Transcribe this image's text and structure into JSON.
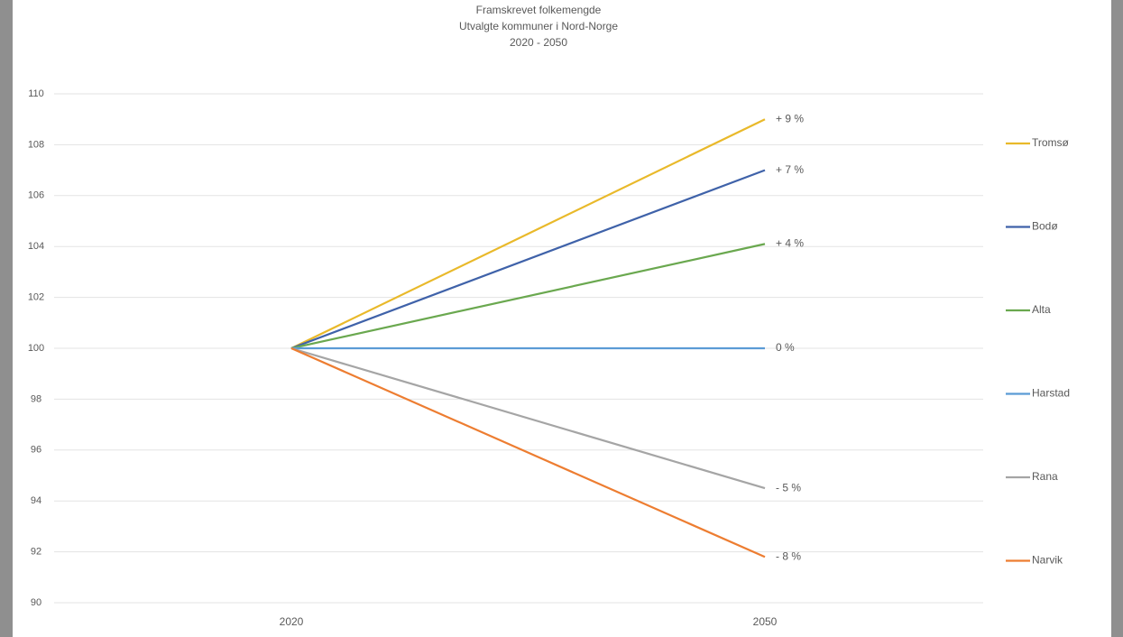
{
  "chart_data": {
    "type": "line",
    "title": [
      "Framskrevet folkemengde",
      "Utvalgte kommuner  i Nord-Norge",
      "2020 - 2050"
    ],
    "categories": [
      "2020",
      "2050"
    ],
    "series": [
      {
        "name": "Tromsø",
        "color": "#e9b92a",
        "values": [
          100,
          109
        ],
        "value_labels": [
          null,
          "+ 9 %"
        ]
      },
      {
        "name": "Bodø",
        "color": "#3f62a9",
        "values": [
          100,
          107
        ],
        "value_labels": [
          null,
          "+ 7 %"
        ]
      },
      {
        "name": "Alta",
        "color": "#6aa84f",
        "values": [
          100,
          104.1
        ],
        "value_labels": [
          null,
          "+ 4 %"
        ]
      },
      {
        "name": "Harstad",
        "color": "#5b9bd5",
        "values": [
          100,
          100
        ],
        "value_labels": [
          null,
          "0 %"
        ]
      },
      {
        "name": "Rana",
        "color": "#a5a5a5",
        "values": [
          100,
          94.5
        ],
        "value_labels": [
          null,
          "- 5 %"
        ]
      },
      {
        "name": "Narvik",
        "color": "#ed7d31",
        "values": [
          100,
          91.8
        ],
        "value_labels": [
          null,
          "- 8 %"
        ]
      }
    ],
    "ylim": [
      90,
      110
    ],
    "yticks": [
      90,
      92,
      94,
      96,
      98,
      100,
      102,
      104,
      106,
      108,
      110
    ],
    "grid": true,
    "legend": "right"
  }
}
